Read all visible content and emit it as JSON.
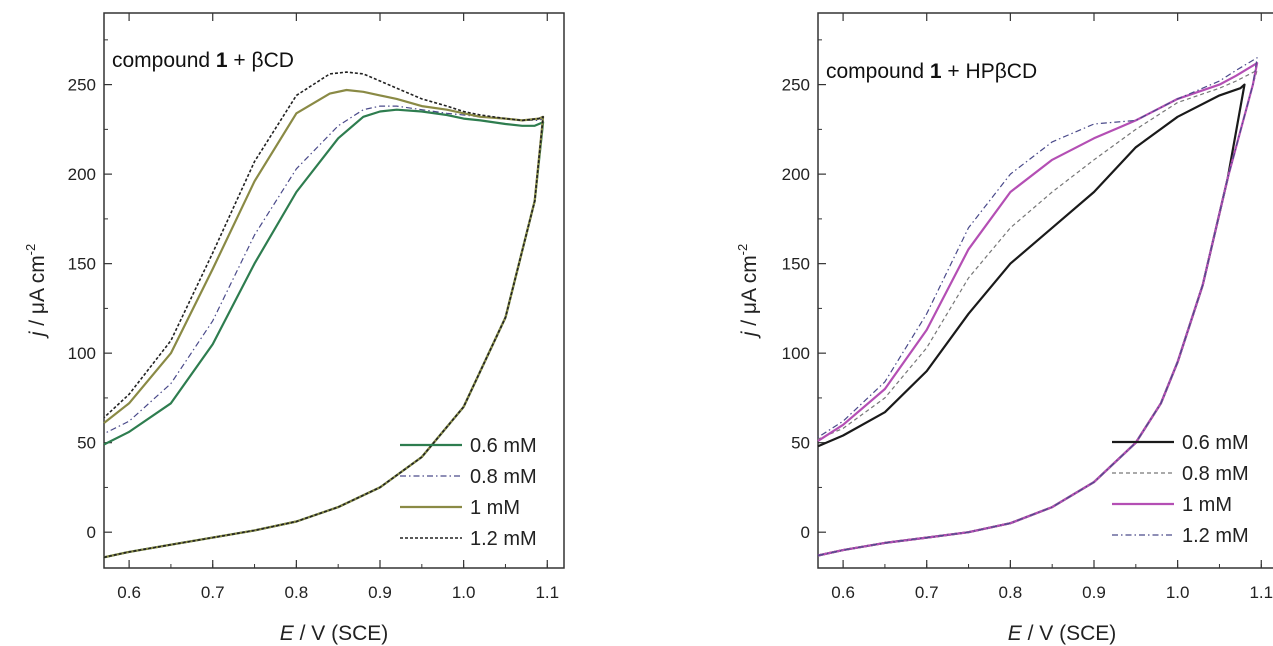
{
  "chart_data": [
    {
      "type": "line",
      "title_prefix": "compound ",
      "title_bold": "1",
      "title_suffix": " + βCD",
      "xlabel_italic": "E",
      "xlabel_rest": " / V (SCE)",
      "ylabel_italic": "j",
      "ylabel_rest": " / μA cm",
      "ylabel_sup": "-2",
      "xlim": [
        0.57,
        1.12
      ],
      "ylim": [
        -20,
        290
      ],
      "xticks": [
        0.6,
        0.7,
        0.8,
        0.9,
        1.0,
        1.1
      ],
      "xtick_labels": [
        "0.6",
        "0.7",
        "0.8",
        "0.9",
        "1.0",
        "1.1"
      ],
      "yticks": [
        0,
        50,
        100,
        150,
        200,
        250
      ],
      "ytick_labels": [
        "0",
        "50",
        "100",
        "150",
        "200",
        "250"
      ],
      "grid": false,
      "legend_position": "bottom-right",
      "series": [
        {
          "name": "0.6 mM",
          "color": "#2e7d4f",
          "dash": "solid",
          "width": 2.2,
          "x": [
            0.57,
            0.6,
            0.65,
            0.7,
            0.75,
            0.8,
            0.85,
            0.9,
            0.95,
            1.0,
            1.05,
            1.085,
            1.095,
            1.09,
            1.085,
            1.07,
            1.05,
            1.02,
            1.0,
            0.98,
            0.95,
            0.92,
            0.9,
            0.88,
            0.85,
            0.8,
            0.75,
            0.7,
            0.65,
            0.6,
            0.57
          ],
          "y": [
            -14,
            -11,
            -7,
            -3,
            1,
            6,
            14,
            25,
            42,
            70,
            120,
            185,
            229,
            228,
            227,
            227,
            228,
            230,
            231,
            233,
            235,
            236,
            235,
            232,
            220,
            190,
            150,
            105,
            72,
            56,
            49
          ]
        },
        {
          "name": "0.8 mM",
          "color": "#4a4a8a",
          "dash": "6,3,1.5,3",
          "width": 1.2,
          "x": [
            0.57,
            0.6,
            0.65,
            0.7,
            0.75,
            0.8,
            0.85,
            0.9,
            0.95,
            1.0,
            1.05,
            1.085,
            1.095,
            1.09,
            1.07,
            1.05,
            1.02,
            1.0,
            0.98,
            0.95,
            0.92,
            0.9,
            0.88,
            0.85,
            0.8,
            0.75,
            0.7,
            0.65,
            0.6,
            0.57
          ],
          "y": [
            -14,
            -11,
            -7,
            -3,
            1,
            6,
            14,
            25,
            42,
            70,
            120,
            185,
            231,
            230,
            230,
            231,
            232,
            233,
            234,
            236,
            238,
            238,
            236,
            227,
            203,
            166,
            118,
            83,
            62,
            55
          ]
        },
        {
          "name": "1 mM",
          "color": "#8a8a45",
          "dash": "solid",
          "width": 2.2,
          "x": [
            0.57,
            0.6,
            0.65,
            0.7,
            0.75,
            0.8,
            0.85,
            0.9,
            0.95,
            1.0,
            1.05,
            1.085,
            1.095,
            1.09,
            1.07,
            1.05,
            1.02,
            1.0,
            0.98,
            0.95,
            0.92,
            0.9,
            0.88,
            0.86,
            0.84,
            0.8,
            0.75,
            0.7,
            0.65,
            0.6,
            0.57
          ],
          "y": [
            -14,
            -11,
            -7,
            -3,
            1,
            6,
            14,
            25,
            42,
            70,
            120,
            185,
            232,
            231,
            230,
            231,
            232,
            234,
            236,
            238,
            242,
            244,
            246,
            247,
            245,
            234,
            196,
            147,
            100,
            72,
            61
          ]
        },
        {
          "name": "1.2 mM",
          "color": "#222222",
          "dash": "3,2",
          "width": 1.6,
          "x": [
            0.57,
            0.6,
            0.65,
            0.7,
            0.75,
            0.8,
            0.85,
            0.9,
            0.95,
            1.0,
            1.05,
            1.085,
            1.095,
            1.09,
            1.07,
            1.05,
            1.02,
            1.0,
            0.98,
            0.95,
            0.92,
            0.9,
            0.88,
            0.86,
            0.84,
            0.8,
            0.75,
            0.7,
            0.65,
            0.6,
            0.57
          ],
          "y": [
            -14,
            -11,
            -7,
            -3,
            1,
            6,
            14,
            25,
            42,
            70,
            120,
            185,
            232,
            231,
            230,
            231,
            233,
            235,
            238,
            242,
            248,
            252,
            256,
            257,
            256,
            244,
            207,
            156,
            107,
            77,
            64
          ]
        }
      ]
    },
    {
      "type": "line",
      "title_prefix": "compound ",
      "title_bold": "1",
      "title_suffix": " + HPβCD",
      "xlabel_italic": "E",
      "xlabel_rest": " / V (SCE)",
      "ylabel_italic": "j",
      "ylabel_rest": " / μA cm",
      "ylabel_sup": "-2",
      "xlim": [
        0.57,
        1.12
      ],
      "ylim": [
        -20,
        290
      ],
      "xticks": [
        0.6,
        0.7,
        0.8,
        0.9,
        1.0,
        1.1
      ],
      "xtick_labels": [
        "0.6",
        "0.7",
        "0.8",
        "0.9",
        "1.0",
        "1.1"
      ],
      "yticks": [
        0,
        50,
        100,
        150,
        200,
        250
      ],
      "ytick_labels": [
        "0",
        "50",
        "100",
        "150",
        "200",
        "250"
      ],
      "grid": false,
      "legend_position": "bottom-right",
      "series": [
        {
          "name": "0.6 mM",
          "color": "#1a1a1a",
          "dash": "solid",
          "width": 2.2,
          "x": [
            0.57,
            0.6,
            0.65,
            0.7,
            0.75,
            0.8,
            0.85,
            0.9,
            0.95,
            0.98,
            1.0,
            1.03,
            1.06,
            1.08,
            1.075,
            1.05,
            1.0,
            0.95,
            0.9,
            0.85,
            0.8,
            0.75,
            0.7,
            0.65,
            0.6,
            0.57
          ],
          "y": [
            -13,
            -10,
            -6,
            -3,
            0,
            5,
            14,
            28,
            50,
            72,
            95,
            138,
            198,
            250,
            248,
            244,
            232,
            215,
            190,
            170,
            150,
            122,
            90,
            67,
            54,
            48
          ]
        },
        {
          "name": "0.8 mM",
          "color": "#777777",
          "dash": "4,3",
          "width": 1.2,
          "x": [
            0.57,
            0.6,
            0.65,
            0.7,
            0.75,
            0.8,
            0.85,
            0.9,
            0.95,
            0.98,
            1.0,
            1.03,
            1.06,
            1.09,
            1.095,
            1.07,
            1.05,
            1.0,
            0.95,
            0.9,
            0.85,
            0.8,
            0.75,
            0.7,
            0.65,
            0.6,
            0.57
          ],
          "y": [
            -13,
            -10,
            -6,
            -3,
            0,
            5,
            14,
            28,
            50,
            72,
            95,
            138,
            198,
            250,
            258,
            252,
            248,
            240,
            225,
            208,
            190,
            170,
            142,
            103,
            75,
            58,
            52
          ]
        },
        {
          "name": "1 mM",
          "color": "#b44fb4",
          "dash": "solid",
          "width": 2.2,
          "x": [
            0.57,
            0.6,
            0.65,
            0.7,
            0.75,
            0.8,
            0.85,
            0.9,
            0.95,
            0.98,
            1.0,
            1.03,
            1.06,
            1.09,
            1.095,
            1.07,
            1.05,
            1.0,
            0.95,
            0.9,
            0.85,
            0.8,
            0.75,
            0.7,
            0.65,
            0.6,
            0.57
          ],
          "y": [
            -13,
            -10,
            -6,
            -3,
            0,
            5,
            14,
            28,
            50,
            72,
            95,
            138,
            198,
            250,
            262,
            255,
            250,
            242,
            230,
            220,
            208,
            190,
            158,
            113,
            80,
            60,
            51
          ]
        },
        {
          "name": "1.2 mM",
          "color": "#4a4a8a",
          "dash": "6,3,1.5,3",
          "width": 1.2,
          "x": [
            0.57,
            0.6,
            0.65,
            0.7,
            0.75,
            0.8,
            0.85,
            0.9,
            0.95,
            0.98,
            1.0,
            1.03,
            1.06,
            1.09,
            1.095,
            1.07,
            1.05,
            1.0,
            0.95,
            0.9,
            0.85,
            0.8,
            0.75,
            0.7,
            0.65,
            0.6,
            0.57
          ],
          "y": [
            -13,
            -10,
            -6,
            -3,
            0,
            5,
            14,
            28,
            50,
            72,
            95,
            138,
            198,
            250,
            265,
            258,
            252,
            242,
            230,
            228,
            218,
            200,
            170,
            122,
            84,
            62,
            53
          ]
        }
      ]
    }
  ]
}
